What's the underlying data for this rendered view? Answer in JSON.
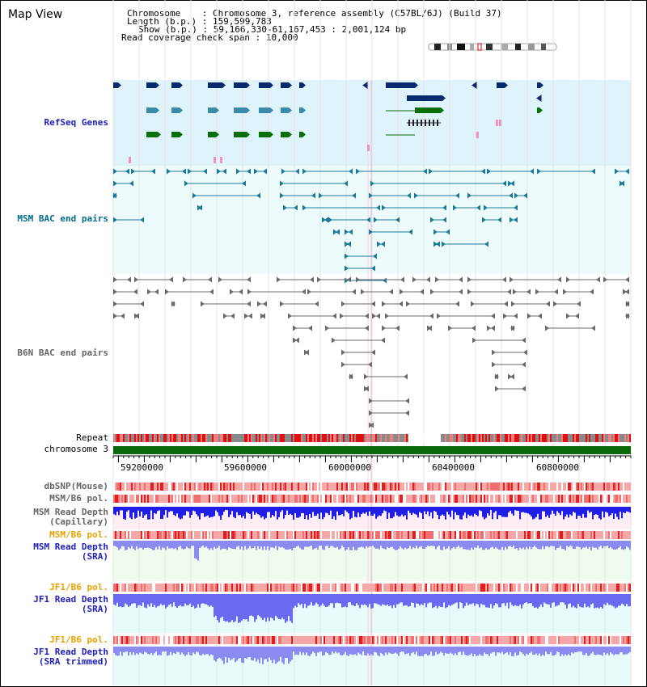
{
  "title": "Map View",
  "info": {
    "chromosome_key": "Chromosome",
    "chromosome_val": "Chromosome 3, reference assembly (C57BL/6J) (Build 37)",
    "length_key": "Length (b.p.)",
    "length_val": "159,599,783",
    "show_key": "Show (b.p.)",
    "show_val": "59,166,330-61,167,453 : 2,001,124 bp",
    "span_key": "Read coverage check span",
    "span_val": "10,000"
  },
  "tracks": {
    "refseq": "RefSeq Genes",
    "msm_bac": "MSM BAC end pairs",
    "b6n_bac": "B6N BAC end pairs",
    "repeat": "Repeat",
    "chromosome": "chromosome 3",
    "dbsnp": "dbSNP(Mouse)",
    "msm_b6_pol1": "MSM/B6 pol.",
    "msm_depth_cap_1": "MSM Read Depth",
    "msm_depth_cap_2": "(Capillary)",
    "msm_b6_pol2": "MSM/B6 pol.",
    "msm_depth_sra_1": "MSM Read Depth",
    "msm_depth_sra_2": "(SRA)",
    "jf1_b6_pol1": "JF1/B6 pol.",
    "jf1_depth_sra_1": "JF1 Read Depth",
    "jf1_depth_sra_2": "(SRA)",
    "jf1_b6_pol2": "JF1/B6 pol.",
    "jf1_depth_trim_1": "JF1 Read Depth",
    "jf1_depth_trim_2": "(SRA trimmed)"
  },
  "axis": {
    "ticks": [
      "59200000",
      "59600000",
      "60000000",
      "60400000",
      "60800000"
    ]
  },
  "colors": {
    "refseq_label": "#1e1ebe",
    "msm_bac_label": "#006d8c",
    "b6n_bac_label": "#666666",
    "pol_msm_label": "#e8a000",
    "read_depth_label": "#1e1ebe",
    "gene_dark": "#0a2a6e",
    "gene_mid": "#3a8aa8",
    "gene_green": "#0a6e0a",
    "chromosome_bar": "#0a6a0a"
  }
}
